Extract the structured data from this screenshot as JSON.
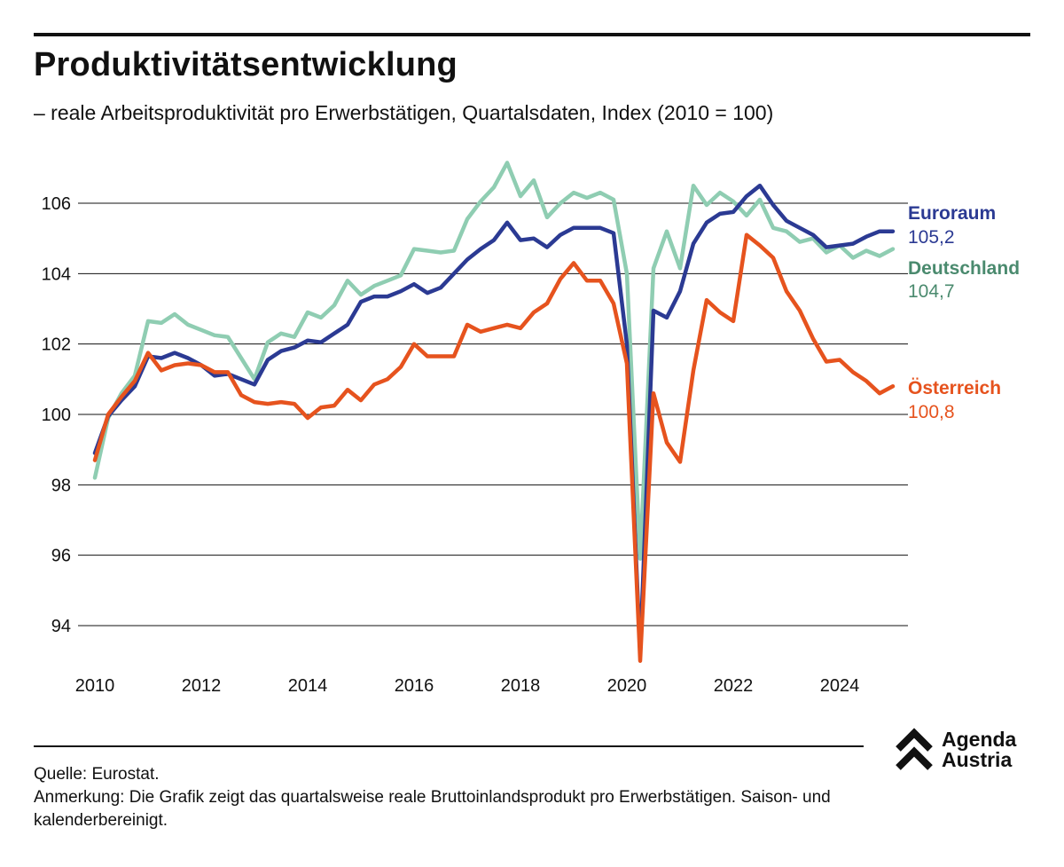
{
  "title": "Produktivitätsentwicklung",
  "subtitle": "– reale Arbeitsproduktivität pro Erwerbstätigen, Quartalsdaten, Index (2010 = 100)",
  "footer": {
    "source": "Quelle: Eurostat.",
    "note": "Anmerkung: Die Grafik zeigt das quartalsweise reale Bruttoinlandsprodukt pro Erwerbstätigen. Saison- und kalenderbereinigt."
  },
  "logo": {
    "line1": "Agenda",
    "line2": "Austria",
    "color": "#111111"
  },
  "chart_data": {
    "type": "line",
    "title": "Produktivitätsentwicklung",
    "xlabel": "",
    "ylabel": "",
    "xlim": [
      2010,
      2025
    ],
    "ylim": [
      93,
      107.5
    ],
    "yticks": [
      94,
      96,
      98,
      100,
      102,
      104,
      106
    ],
    "xticks": [
      2010,
      2012,
      2014,
      2016,
      2018,
      2020,
      2022,
      2024
    ],
    "grid": true,
    "x_start": 2010.0,
    "x_step": 0.25,
    "series": [
      {
        "name": "Deutschland",
        "end_label": "104,7",
        "color": "#8fcdb2",
        "label_color": "#4a8a6e",
        "values": [
          98.2,
          99.9,
          100.6,
          101.1,
          102.65,
          102.6,
          102.85,
          102.55,
          102.4,
          102.25,
          102.2,
          101.6,
          101.0,
          102.05,
          102.3,
          102.2,
          102.9,
          102.75,
          103.1,
          103.8,
          103.4,
          103.65,
          103.8,
          103.95,
          104.7,
          104.65,
          104.6,
          104.65,
          105.55,
          106.05,
          106.45,
          107.15,
          106.2,
          106.65,
          105.6,
          106.0,
          106.3,
          106.15,
          106.3,
          106.1,
          104.0,
          95.9,
          104.15,
          105.2,
          104.15,
          106.5,
          105.95,
          106.3,
          106.05,
          105.65,
          106.1,
          105.3,
          105.2,
          104.9,
          105.0,
          104.6,
          104.8,
          104.45,
          104.65,
          104.5,
          104.7
        ]
      },
      {
        "name": "Euroraum",
        "end_label": "105,2",
        "color": "#2b3a93",
        "label_color": "#2b3a93",
        "values": [
          98.9,
          99.95,
          100.4,
          100.8,
          101.65,
          101.6,
          101.75,
          101.6,
          101.4,
          101.1,
          101.15,
          101.0,
          100.85,
          101.55,
          101.8,
          101.9,
          102.1,
          102.05,
          102.3,
          102.55,
          103.2,
          103.35,
          103.35,
          103.5,
          103.7,
          103.45,
          103.6,
          104.0,
          104.4,
          104.7,
          104.95,
          105.45,
          104.95,
          105.0,
          104.75,
          105.1,
          105.3,
          105.3,
          105.3,
          105.15,
          102.0,
          93.2,
          102.95,
          102.75,
          103.5,
          104.85,
          105.45,
          105.7,
          105.75,
          106.2,
          106.5,
          105.95,
          105.5,
          105.3,
          105.1,
          104.75,
          104.8,
          104.85,
          105.05,
          105.2,
          105.2
        ]
      },
      {
        "name": "Österreich",
        "end_label": "100,8",
        "color": "#e6531e",
        "label_color": "#e6531e",
        "values": [
          98.7,
          100.0,
          100.5,
          100.95,
          101.75,
          101.25,
          101.4,
          101.45,
          101.4,
          101.2,
          101.2,
          100.55,
          100.35,
          100.3,
          100.35,
          100.3,
          99.9,
          100.2,
          100.25,
          100.7,
          100.4,
          100.85,
          101.0,
          101.35,
          102.0,
          101.65,
          101.65,
          101.65,
          102.55,
          102.35,
          102.45,
          102.55,
          102.45,
          102.9,
          103.15,
          103.85,
          104.3,
          103.8,
          103.8,
          103.15,
          101.45,
          93.0,
          100.6,
          99.2,
          98.65,
          101.25,
          103.25,
          102.9,
          102.65,
          105.1,
          104.8,
          104.45,
          103.5,
          102.95,
          102.15,
          101.5,
          101.55,
          101.2,
          100.95,
          100.6,
          100.8
        ]
      }
    ]
  }
}
